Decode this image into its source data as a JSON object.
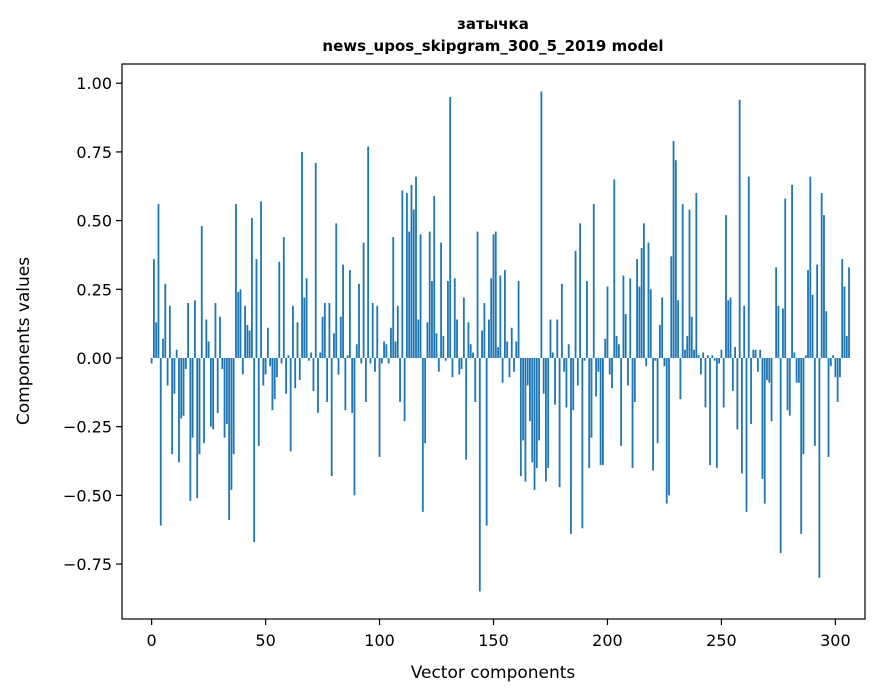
{
  "chart_data": {
    "type": "bar",
    "title_line1": "затычка",
    "title_line2": "news_upos_skipgram_300_5_2019 model",
    "xlabel": "Vector components",
    "ylabel": "Components values",
    "xlim": [
      -13,
      313
    ],
    "ylim": [
      -0.95,
      1.07
    ],
    "xticks": [
      0,
      50,
      100,
      150,
      200,
      250,
      300
    ],
    "yticks": [
      -0.75,
      -0.5,
      -0.25,
      0.0,
      0.25,
      0.5,
      0.75,
      1.0
    ],
    "ytick_labels": [
      "−0.75",
      "−0.50",
      "−0.25",
      "0.00",
      "0.25",
      "0.50",
      "0.75",
      "1.00"
    ],
    "grid": false,
    "bar_color": "#1f77b4",
    "values": [
      -0.02,
      0.36,
      0.13,
      0.56,
      -0.61,
      0.07,
      0.27,
      -0.1,
      0.19,
      -0.35,
      -0.13,
      0.03,
      -0.38,
      -0.22,
      -0.21,
      -0.04,
      0.2,
      -0.52,
      -0.29,
      0.21,
      -0.51,
      -0.35,
      0.48,
      -0.31,
      0.14,
      0.06,
      -0.25,
      -0.26,
      0.2,
      -0.2,
      0.15,
      -0.04,
      -0.29,
      -0.24,
      -0.59,
      -0.48,
      -0.35,
      0.56,
      0.24,
      0.25,
      -0.06,
      0.19,
      0.12,
      0.1,
      0.51,
      -0.67,
      0.36,
      -0.32,
      0.57,
      -0.1,
      -0.06,
      0.11,
      -0.03,
      -0.19,
      -0.15,
      -0.07,
      0.35,
      -0.02,
      0.44,
      -0.13,
      0.01,
      -0.34,
      0.19,
      -0.11,
      0.13,
      -0.08,
      0.75,
      0.22,
      0.29,
      -0.01,
      0.02,
      -0.12,
      0.71,
      -0.2,
      0.02,
      0.15,
      0.2,
      -0.16,
      0.2,
      -0.43,
      0.09,
      0.49,
      -0.06,
      0.15,
      0.34,
      -0.19,
      0.01,
      0.32,
      -0.2,
      -0.5,
      0.05,
      0.27,
      -0.02,
      0.42,
      -0.16,
      0.77,
      -0.02,
      0.2,
      -0.05,
      0.19,
      -0.36,
      -0.02,
      0.06,
      0.05,
      -0.02,
      0.11,
      0.44,
      0.06,
      0.19,
      -0.16,
      0.61,
      -0.23,
      0.6,
      0.46,
      0.63,
      0.54,
      0.66,
      0.14,
      0.45,
      -0.56,
      -0.31,
      0.13,
      0.46,
      0.28,
      0.59,
      0.09,
      -0.05,
      0.42,
      0.08,
      -0.01,
      0.28,
      0.95,
      -0.07,
      0.29,
      0.14,
      -0.06,
      -0.04,
      0.22,
      -0.37,
      0.13,
      0.05,
      0.02,
      -0.16,
      0.46,
      -0.85,
      0.1,
      0.2,
      -0.61,
      0.14,
      0.29,
      0.45,
      0.46,
      0.04,
      0.3,
      -0.09,
      0.32,
      0.06,
      -0.07,
      0.11,
      -0.05,
      0.06,
      0.28,
      -0.43,
      -0.3,
      -0.45,
      -0.1,
      -0.23,
      -0.38,
      -0.48,
      -0.4,
      -0.3,
      0.97,
      -0.13,
      -0.45,
      -0.4,
      0.14,
      0.02,
      -0.17,
      0.14,
      -0.47,
      0.27,
      -0.05,
      -0.18,
      0.05,
      -0.64,
      -0.19,
      0.39,
      -0.1,
      0.49,
      -0.62,
      -0.01,
      0.28,
      -0.4,
      -0.29,
      0.56,
      -0.14,
      -0.05,
      -0.39,
      -0.39,
      0.07,
      0.26,
      -0.06,
      -0.11,
      0.65,
      0.08,
      0.05,
      -0.32,
      0.3,
      0.16,
      -0.1,
      0.29,
      -0.4,
      -0.16,
      0.36,
      0.26,
      0.4,
      0.49,
      -0.03,
      0.42,
      0.25,
      -0.41,
      -0.01,
      -0.31,
      0.12,
      0.22,
      -0.03,
      -0.53,
      -0.5,
      0.37,
      0.79,
      0.72,
      0.21,
      -0.15,
      0.56,
      0.03,
      0.08,
      0.54,
      0.15,
      0.03,
      0.6,
      0.01,
      -0.06,
      0.02,
      -0.18,
      0.01,
      -0.39,
      0.01,
      -0.01,
      -0.4,
      -0.02,
      0.03,
      -0.18,
      0.52,
      0.21,
      0.22,
      -0.12,
      0.04,
      -0.26,
      0.94,
      -0.42,
      0.19,
      -0.56,
      0.66,
      -0.24,
      0.03,
      0.03,
      -0.05,
      0.03,
      -0.44,
      -0.53,
      -0.08,
      -0.09,
      -0.23,
      0.0,
      0.33,
      0.19,
      -0.71,
      0.18,
      0.58,
      -0.19,
      -0.21,
      0.63,
      0.02,
      -0.09,
      -0.09,
      -0.64,
      -0.35,
      0.01,
      0.32,
      0.66,
      0.23,
      -0.32,
      0.34,
      -0.8,
      0.6,
      0.52,
      0.17,
      -0.36,
      -0.03,
      0.01,
      -0.07,
      -0.16,
      -0.07,
      0.36,
      0.26,
      0.08,
      0.33
    ]
  }
}
